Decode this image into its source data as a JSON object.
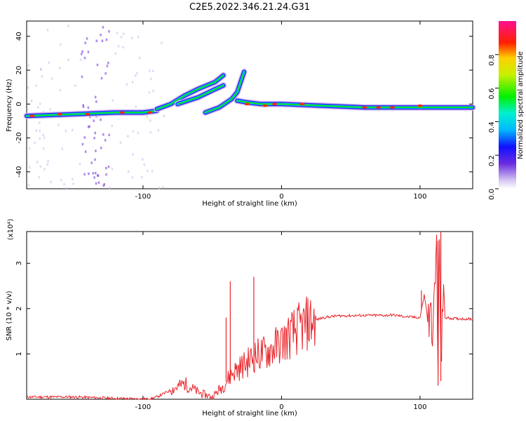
{
  "title": "C2E5.2022.346.21.24.G31",
  "chart_data": [
    {
      "type": "heatmap",
      "x_range": [
        -184,
        138
      ],
      "y_range": [
        -50,
        49
      ],
      "xlabel": "Height of straight line (km)",
      "ylabel": "Frequency (Hz)",
      "x_ticks": [
        -100,
        0,
        100
      ],
      "y_ticks": [
        -40,
        -20,
        0,
        20,
        40
      ],
      "colorbar": {
        "label": "Normalized spectral amplitude",
        "range": [
          0.0,
          1.0
        ],
        "ticks": [
          "0.0",
          "0.2",
          "0.4",
          "0.6",
          "0.8"
        ]
      },
      "ridges": [
        {
          "name": "",
          "points": [
            [
              -184,
              -7
            ],
            [
              -150,
              -6
            ],
            [
              -120,
              -5
            ],
            [
              -100,
              -5
            ],
            [
              -90,
              -4
            ]
          ]
        },
        {
          "name": "",
          "points": [
            [
              -90,
              -3
            ],
            [
              -80,
              0
            ],
            [
              -70,
              5
            ],
            [
              -60,
              9
            ],
            [
              -48,
              13
            ],
            [
              -42,
              17
            ]
          ]
        },
        {
          "name": "",
          "points": [
            [
              -75,
              0
            ],
            [
              -60,
              4
            ],
            [
              -50,
              8
            ],
            [
              -42,
              11
            ]
          ]
        },
        {
          "name": "",
          "points": [
            [
              -55,
              -5
            ],
            [
              -45,
              -2
            ],
            [
              -36,
              3
            ],
            [
              -32,
              7
            ],
            [
              -27,
              19
            ]
          ]
        },
        {
          "name": "",
          "points": [
            [
              -32,
              2
            ],
            [
              -25,
              1
            ],
            [
              -15,
              0
            ],
            [
              0,
              0
            ],
            [
              30,
              -1
            ],
            [
              60,
              -2
            ],
            [
              90,
              -2
            ],
            [
              110,
              -2
            ],
            [
              138,
              -2
            ]
          ]
        }
      ]
    },
    {
      "type": "line",
      "x_range": [
        -184,
        138
      ],
      "y_range": [
        0,
        3.7
      ],
      "xlabel": "Height of straight line (km)",
      "ylabel": "SNR (10 * v/v)",
      "y_multiplier": "(x10⁴)",
      "x_ticks": [
        -100,
        0,
        100
      ],
      "y_ticks": [
        1,
        2,
        3
      ],
      "color": "#e8252b",
      "series": [
        {
          "name": "",
          "x": [
            -184,
            -150,
            -120,
            -95,
            -90,
            -80,
            -70,
            -60,
            -50,
            -42,
            -35,
            -30,
            -25,
            -20,
            -15,
            -10,
            0,
            10,
            20,
            30,
            40,
            60,
            75,
            80,
            90,
            100,
            103,
            106,
            110,
            112,
            113,
            114,
            115,
            116,
            118,
            125,
            138
          ],
          "y": [
            0.05,
            0.05,
            0.02,
            0.0,
            0.05,
            0.2,
            0.35,
            0.15,
            0.05,
            0.3,
            0.6,
            0.7,
            0.8,
            0.95,
            1.0,
            1.05,
            1.25,
            1.5,
            1.7,
            1.8,
            1.84,
            1.85,
            1.85,
            1.86,
            1.82,
            1.8,
            2.3,
            1.7,
            1.78,
            3.5,
            0.3,
            3.7,
            0.4,
            2.2,
            1.8,
            1.78,
            1.77
          ]
        }
      ],
      "spikes": [
        [
          -20,
          2.7
        ],
        [
          -37,
          2.6
        ],
        [
          -40,
          1.8
        ],
        [
          115,
          3.7
        ],
        [
          113,
          3.5
        ],
        [
          101,
          2.4
        ]
      ]
    }
  ]
}
